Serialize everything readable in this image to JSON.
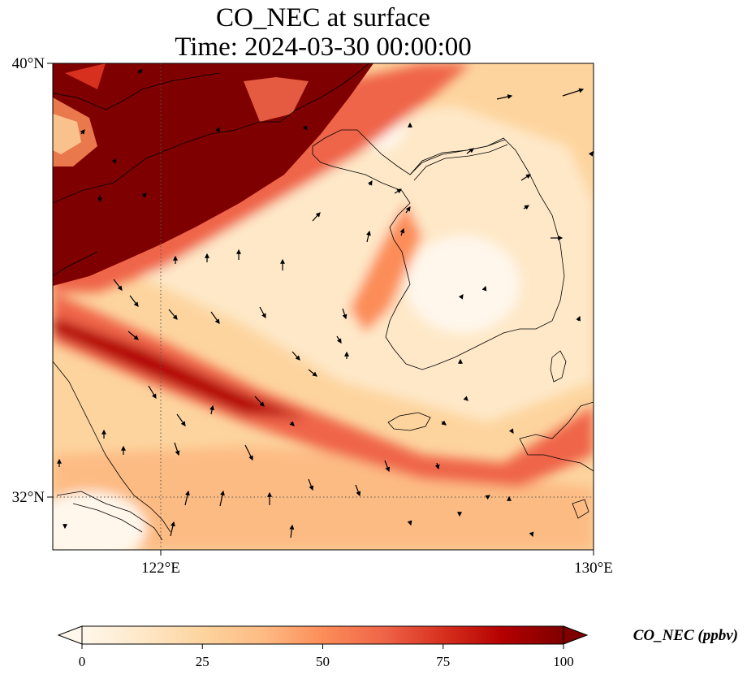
{
  "title": {
    "line1": "CO_NEC at surface",
    "line2": "Time: 2024-03-30 00:00:00"
  },
  "map": {
    "extent": {
      "lon_min": 118,
      "lon_max": 130,
      "lat_min": 30.8,
      "lat_max": 40
    },
    "lat_ticks": [
      {
        "value": 40,
        "label": "40°N"
      },
      {
        "value": 32,
        "label": "32°N"
      }
    ],
    "lon_ticks": [
      {
        "value": 122,
        "label": "122°E"
      },
      {
        "value": 130,
        "label": "130°E"
      }
    ],
    "gridlines": {
      "lon": [
        122
      ],
      "lat": [
        32
      ],
      "style": "dotted"
    },
    "field": "CO_NEC surface concentration, shaded",
    "vectors": "wind arrows overlay",
    "coastlines": true
  },
  "colorbar": {
    "label": "CO_NEC (ppbv)",
    "min": 0,
    "max": 100,
    "ticks": [
      "0",
      "25",
      "50",
      "75",
      "100"
    ],
    "extend": "both",
    "colormap": "OrRd",
    "colors": [
      "#fff7ec",
      "#fee8c8",
      "#fdd49e",
      "#fdbb84",
      "#fc8d59",
      "#ef6548",
      "#d7301f",
      "#b30000",
      "#7f0000"
    ]
  }
}
